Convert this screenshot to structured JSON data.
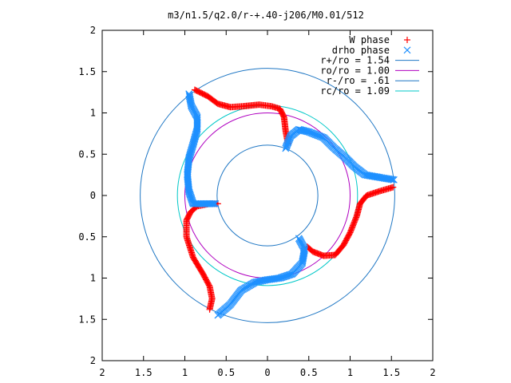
{
  "chart_data": {
    "type": "scatter",
    "title": "m3/n1.5/q2.0/r-+.40-j206/M0.01/512",
    "xlabel": "",
    "ylabel": "",
    "xlim": [
      -2,
      2
    ],
    "ylim": [
      -2,
      2
    ],
    "grid": false,
    "legend_position": "top-right",
    "x_ticks": [
      -2,
      -1.5,
      -1,
      -0.5,
      0,
      0.5,
      1,
      1.5,
      2
    ],
    "y_ticks": [
      -2,
      -1.5,
      -1,
      -0.5,
      0,
      0.5,
      1,
      1.5,
      2
    ],
    "x_tick_labels": [
      "2",
      "1.5",
      "1",
      "0.5",
      "0",
      "0.5",
      "1",
      "1.5",
      "2"
    ],
    "y_tick_labels": [
      "2",
      "1.5",
      "1",
      "0.5",
      "0",
      "0.5",
      "1",
      "1.5",
      "2"
    ],
    "circles": [
      {
        "name": "r+/ro = 1.54",
        "r": 1.54,
        "color": "#1f77c4"
      },
      {
        "name": "ro/ro = 1.00",
        "r": 1.0,
        "color": "#b000c0"
      },
      {
        "name": "r-/ro = .61",
        "r": 0.61,
        "color": "#1f77c4"
      },
      {
        "name": "rc/ro = 1.09",
        "r": 1.09,
        "color": "#00c8c8"
      }
    ],
    "series": [
      {
        "name": "W phase",
        "marker": "+",
        "color": "#ff0000",
        "arms": [
          [
            [
              -0.88,
              1.28
            ],
            [
              -0.72,
              1.2
            ],
            [
              -0.6,
              1.11
            ],
            [
              -0.45,
              1.07
            ],
            [
              -0.3,
              1.08
            ],
            [
              -0.1,
              1.1
            ],
            [
              0.05,
              1.08
            ],
            [
              0.15,
              1.05
            ],
            [
              0.2,
              0.95
            ],
            [
              0.22,
              0.78
            ],
            [
              0.25,
              0.62
            ]
          ],
          [
            [
              1.52,
              0.1
            ],
            [
              1.35,
              0.05
            ],
            [
              1.2,
              0.0
            ],
            [
              1.12,
              -0.1
            ],
            [
              1.08,
              -0.25
            ],
            [
              1.0,
              -0.45
            ],
            [
              0.92,
              -0.6
            ],
            [
              0.82,
              -0.72
            ],
            [
              0.68,
              -0.73
            ],
            [
              0.55,
              -0.68
            ],
            [
              0.48,
              -0.62
            ]
          ],
          [
            [
              -0.7,
              -1.38
            ],
            [
              -0.67,
              -1.25
            ],
            [
              -0.7,
              -1.1
            ],
            [
              -0.78,
              -0.95
            ],
            [
              -0.9,
              -0.75
            ],
            [
              -0.98,
              -0.5
            ],
            [
              -0.98,
              -0.3
            ],
            [
              -0.93,
              -0.2
            ],
            [
              -0.85,
              -0.13
            ],
            [
              -0.7,
              -0.1
            ],
            [
              -0.6,
              -0.1
            ]
          ]
        ]
      },
      {
        "name": "drho phase",
        "marker": "x",
        "color": "#1e90ff",
        "arms": [
          [
            [
              1.53,
              0.19
            ],
            [
              1.35,
              0.22
            ],
            [
              1.18,
              0.25
            ],
            [
              1.05,
              0.35
            ],
            [
              0.95,
              0.45
            ],
            [
              0.8,
              0.58
            ],
            [
              0.68,
              0.7
            ],
            [
              0.5,
              0.77
            ],
            [
              0.38,
              0.8
            ],
            [
              0.28,
              0.72
            ],
            [
              0.22,
              0.57
            ]
          ],
          [
            [
              -0.6,
              -1.45
            ],
            [
              -0.45,
              -1.32
            ],
            [
              -0.32,
              -1.15
            ],
            [
              -0.15,
              -1.05
            ],
            [
              0.0,
              -1.02
            ],
            [
              0.15,
              -1.0
            ],
            [
              0.3,
              -0.95
            ],
            [
              0.42,
              -0.82
            ],
            [
              0.45,
              -0.65
            ],
            [
              0.38,
              -0.52
            ]
          ],
          [
            [
              -0.95,
              1.23
            ],
            [
              -0.92,
              1.08
            ],
            [
              -0.85,
              0.95
            ],
            [
              -0.85,
              0.8
            ],
            [
              -0.9,
              0.62
            ],
            [
              -0.95,
              0.45
            ],
            [
              -0.97,
              0.25
            ],
            [
              -0.95,
              0.05
            ],
            [
              -0.9,
              -0.1
            ],
            [
              -0.8,
              -0.1
            ],
            [
              -0.63,
              -0.1
            ]
          ]
        ]
      }
    ]
  }
}
